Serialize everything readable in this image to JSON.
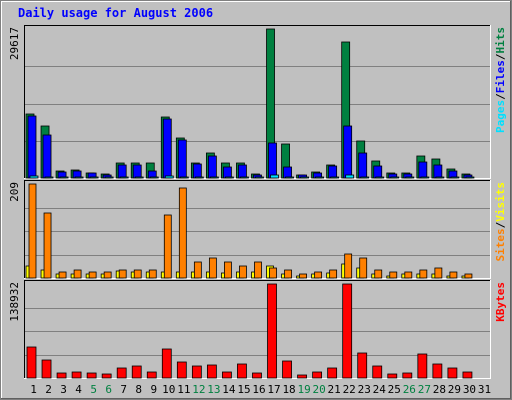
{
  "colors": {
    "background": "#c0c0c0",
    "title": "#0000ff",
    "grid": "#808080",
    "pages": "#00e0ff",
    "files": "#0000ff",
    "hits": "#008040",
    "visits": "#ffff00",
    "sites": "#ff8000",
    "kbytes": "#ff0000",
    "weekend_label": "#008040",
    "weekday_label": "#000000"
  },
  "chart_data": {
    "type": "bar",
    "title": "Daily usage for August 2006",
    "categories": [
      "1",
      "2",
      "3",
      "4",
      "5",
      "6",
      "7",
      "8",
      "9",
      "10",
      "11",
      "12",
      "13",
      "14",
      "15",
      "16",
      "17",
      "18",
      "19",
      "20",
      "21",
      "22",
      "23",
      "24",
      "25",
      "26",
      "27",
      "28",
      "29",
      "30",
      "31"
    ],
    "weekend_days": [
      "5",
      "6",
      "12",
      "13",
      "19",
      "20",
      "26",
      "27"
    ],
    "panels": [
      {
        "id": "hits",
        "ymax_label": "29617",
        "ylim": [
          0,
          29617
        ],
        "legend": [
          {
            "text": "Pages",
            "color_key": "pages"
          },
          {
            "text": "/",
            "color_key": "weekday_label"
          },
          {
            "text": "Files",
            "color_key": "files"
          },
          {
            "text": "/",
            "color_key": "weekday_label"
          },
          {
            "text": "Hits",
            "color_key": "hits"
          }
        ],
        "series": [
          {
            "name": "Hits",
            "color_key": "hits",
            "values": [
              12800,
              10300,
              1300,
              1500,
              1000,
              700,
              3000,
              3000,
              3000,
              12100,
              7900,
              2900,
              4900,
              2900,
              2900,
              700,
              29617,
              6700,
              600,
              1200,
              2600,
              27000,
              7400,
              3300,
              900,
              900,
              4400,
              3800,
              1700,
              700,
              0
            ]
          },
          {
            "name": "Files",
            "color_key": "files",
            "values": [
              12300,
              8600,
              1100,
              1300,
              900,
              600,
              2600,
              2600,
              1300,
              11800,
              7600,
              2700,
              4300,
              2200,
              2600,
              600,
              7000,
              2100,
              500,
              1000,
              2300,
              10400,
              5000,
              2300,
              800,
              800,
              3200,
              2600,
              1300,
              500,
              0
            ]
          },
          {
            "name": "Pages",
            "color_key": "pages",
            "values": [
              300,
              250,
              80,
              90,
              60,
              50,
              120,
              120,
              100,
              330,
              250,
              120,
              180,
              100,
              100,
              40,
              600,
              120,
              40,
              60,
              100,
              500,
              200,
              100,
              40,
              40,
              150,
              120,
              60,
              40,
              0
            ]
          }
        ]
      },
      {
        "id": "sites",
        "ymax_label": "209",
        "ylim": [
          0,
          209
        ],
        "legend": [
          {
            "text": "Sites",
            "color_key": "sites"
          },
          {
            "text": "/",
            "color_key": "weekday_label"
          },
          {
            "text": "Visits",
            "color_key": "visits"
          }
        ],
        "series": [
          {
            "name": "Visits",
            "color_key": "visits",
            "values": [
              27,
              18,
              9,
              9,
              9,
              9,
              16,
              14,
              14,
              14,
              14,
              14,
              14,
              11,
              14,
              14,
              27,
              9,
              5,
              9,
              11,
              32,
              22,
              9,
              5,
              9,
              9,
              9,
              5,
              5,
              0
            ]
          },
          {
            "name": "Sites",
            "color_key": "sites",
            "values": [
              209,
              144,
              14,
              18,
              14,
              14,
              18,
              18,
              18,
              139,
              200,
              36,
              45,
              36,
              27,
              36,
              23,
              18,
              9,
              14,
              18,
              53,
              45,
              18,
              14,
              14,
              18,
              23,
              14,
              9,
              0
            ]
          }
        ]
      },
      {
        "id": "kbytes",
        "ymax_label": "138932",
        "ylim": [
          0,
          138932
        ],
        "legend": [
          {
            "text": "KBytes",
            "color_key": "kbytes"
          }
        ],
        "series": [
          {
            "name": "KBytes",
            "color_key": "kbytes",
            "values": [
              46000,
              26000,
              7500,
              9500,
              7500,
              5500,
              15500,
              17000,
              9500,
              43000,
              23000,
              17000,
              19000,
              9500,
              21000,
              7500,
              138932,
              24500,
              4500,
              8500,
              15000,
              138932,
              37000,
              17000,
              6500,
              7500,
              35000,
              21000,
              15500,
              9500,
              0
            ]
          }
        ]
      }
    ]
  }
}
